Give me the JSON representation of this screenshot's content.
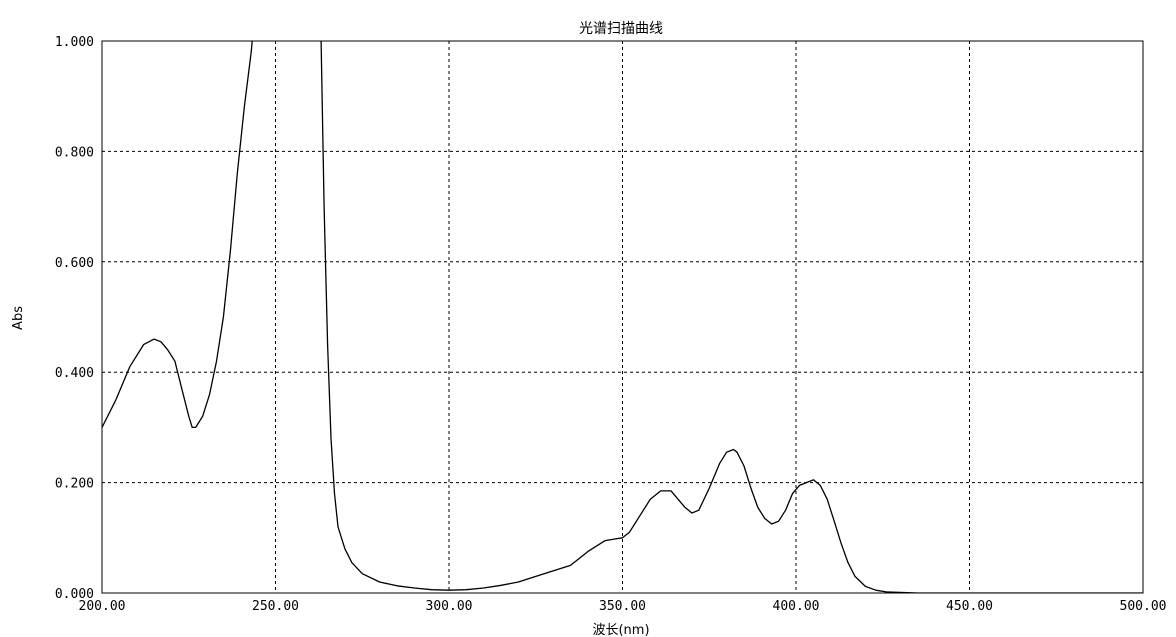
{
  "chart_data": {
    "type": "line",
    "title": "光谱扫描曲线",
    "xlabel": "波长(nm)",
    "ylabel": "Abs",
    "xlim": [
      200,
      500
    ],
    "ylim": [
      0,
      1
    ],
    "grid": true,
    "x_ticks": [
      200,
      250,
      300,
      350,
      400,
      450,
      500
    ],
    "x_tick_labels": [
      "200.00",
      "250.00",
      "300.00",
      "350.00",
      "400.00",
      "450.00",
      "500.00"
    ],
    "y_ticks": [
      0,
      0.2,
      0.4,
      0.6,
      0.8,
      1.0
    ],
    "y_tick_labels": [
      "0.000",
      "0.200",
      "0.400",
      "0.600",
      "0.800",
      "1.000"
    ],
    "series": [
      {
        "color": "#000000",
        "x": [
          200,
          204,
          208,
          212,
          215,
          217,
          219,
          221,
          223,
          225,
          226,
          227,
          229,
          231,
          233,
          235,
          237,
          239,
          241,
          243,
          244,
          263,
          264,
          265,
          266,
          267,
          268,
          270,
          272,
          275,
          280,
          285,
          290,
          295,
          300,
          305,
          310,
          315,
          320,
          325,
          330,
          335,
          340,
          345,
          348,
          350,
          352,
          355,
          358,
          361,
          364,
          366,
          368,
          370,
          372,
          375,
          378,
          380,
          382,
          383,
          385,
          387,
          389,
          391,
          393,
          395,
          397,
          399,
          401,
          403,
          405,
          407,
          409,
          411,
          413,
          415,
          417,
          420,
          423,
          426,
          430,
          435,
          440,
          450,
          460,
          470,
          480,
          490,
          500
        ],
        "y": [
          0.3,
          0.35,
          0.41,
          0.45,
          0.46,
          0.455,
          0.44,
          0.42,
          0.37,
          0.32,
          0.3,
          0.3,
          0.32,
          0.36,
          0.42,
          0.5,
          0.62,
          0.76,
          0.88,
          0.98,
          1.05,
          1.05,
          0.7,
          0.45,
          0.28,
          0.18,
          0.12,
          0.08,
          0.055,
          0.035,
          0.02,
          0.013,
          0.009,
          0.006,
          0.005,
          0.006,
          0.009,
          0.014,
          0.02,
          0.03,
          0.04,
          0.05,
          0.075,
          0.095,
          0.098,
          0.1,
          0.11,
          0.14,
          0.17,
          0.185,
          0.185,
          0.17,
          0.155,
          0.145,
          0.15,
          0.19,
          0.235,
          0.255,
          0.26,
          0.255,
          0.23,
          0.19,
          0.155,
          0.135,
          0.125,
          0.13,
          0.15,
          0.18,
          0.195,
          0.2,
          0.205,
          0.195,
          0.17,
          0.13,
          0.09,
          0.055,
          0.03,
          0.012,
          0.005,
          0.002,
          0.001,
          0.0,
          0.0,
          0.0,
          0.0,
          0.0,
          0.0,
          0.0,
          0.0
        ]
      }
    ]
  }
}
